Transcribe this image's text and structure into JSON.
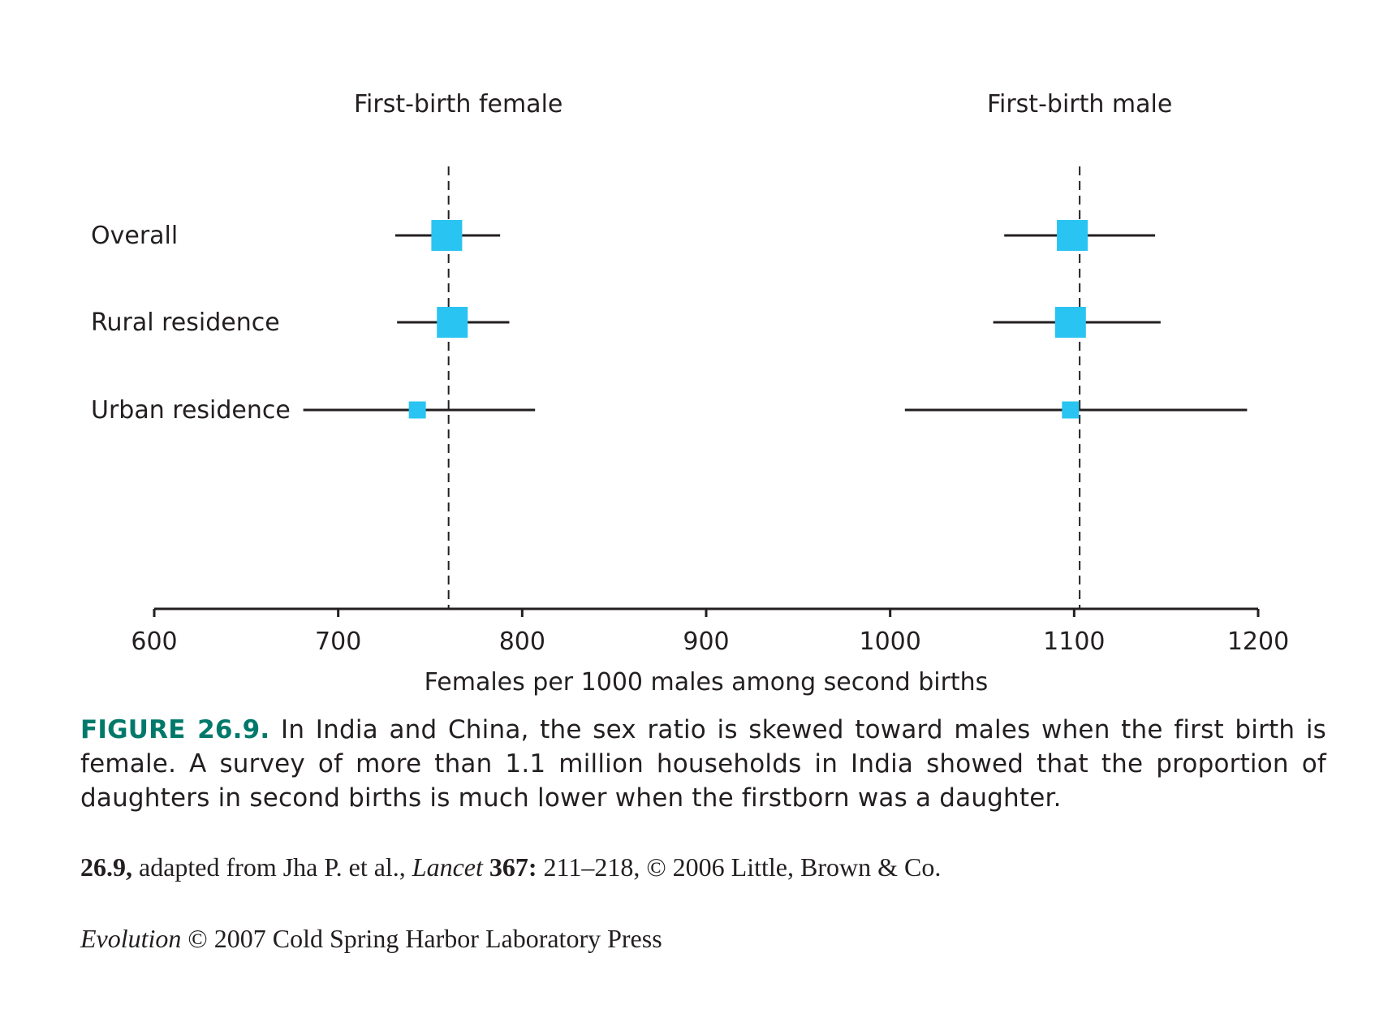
{
  "chart_data": {
    "type": "forest",
    "panels": [
      {
        "title": "First-birth female",
        "reference": 760
      },
      {
        "title": "First-birth male",
        "reference": 1103
      }
    ],
    "categories": [
      "Overall",
      "Rural residence",
      "Urban residence"
    ],
    "series": [
      {
        "name": "First-birth female",
        "points": [
          {
            "category": "Overall",
            "estimate": 759,
            "low": 731,
            "high": 788,
            "weight": "large"
          },
          {
            "category": "Rural residence",
            "estimate": 762,
            "low": 732,
            "high": 793,
            "weight": "large"
          },
          {
            "category": "Urban residence",
            "estimate": 743,
            "low": 681,
            "high": 807,
            "weight": "small"
          }
        ]
      },
      {
        "name": "First-birth male",
        "points": [
          {
            "category": "Overall",
            "estimate": 1099,
            "low": 1062,
            "high": 1144,
            "weight": "large"
          },
          {
            "category": "Rural residence",
            "estimate": 1098,
            "low": 1056,
            "high": 1147,
            "weight": "large"
          },
          {
            "category": "Urban residence",
            "estimate": 1098,
            "low": 1008,
            "high": 1194,
            "weight": "small"
          }
        ]
      }
    ],
    "xlabel": "Females per 1000 males among second births",
    "xlim": [
      600,
      1200
    ],
    "xticks": [
      600,
      700,
      800,
      900,
      1000,
      1100,
      1200
    ],
    "grid": false,
    "marker_color": "#29c4f1"
  },
  "caption": {
    "label": "FIGURE 26.9.",
    "text": "In India and China, the sex ratio is skewed toward males when the first birth is female. A survey of more than 1.1 million households in India showed that the proportion of daughters in second births is much lower when the firstborn was a daughter."
  },
  "credit": {
    "figure_no": "26.9,",
    "source": "adapted from Jha P. et al.,",
    "journal": "Lancet",
    "volume": "367:",
    "pages": "211–218, © 2006 Little, Brown & Co."
  },
  "publisher": {
    "book": "Evolution",
    "rest": "© 2007 Cold Spring Harbor Laboratory Press"
  }
}
